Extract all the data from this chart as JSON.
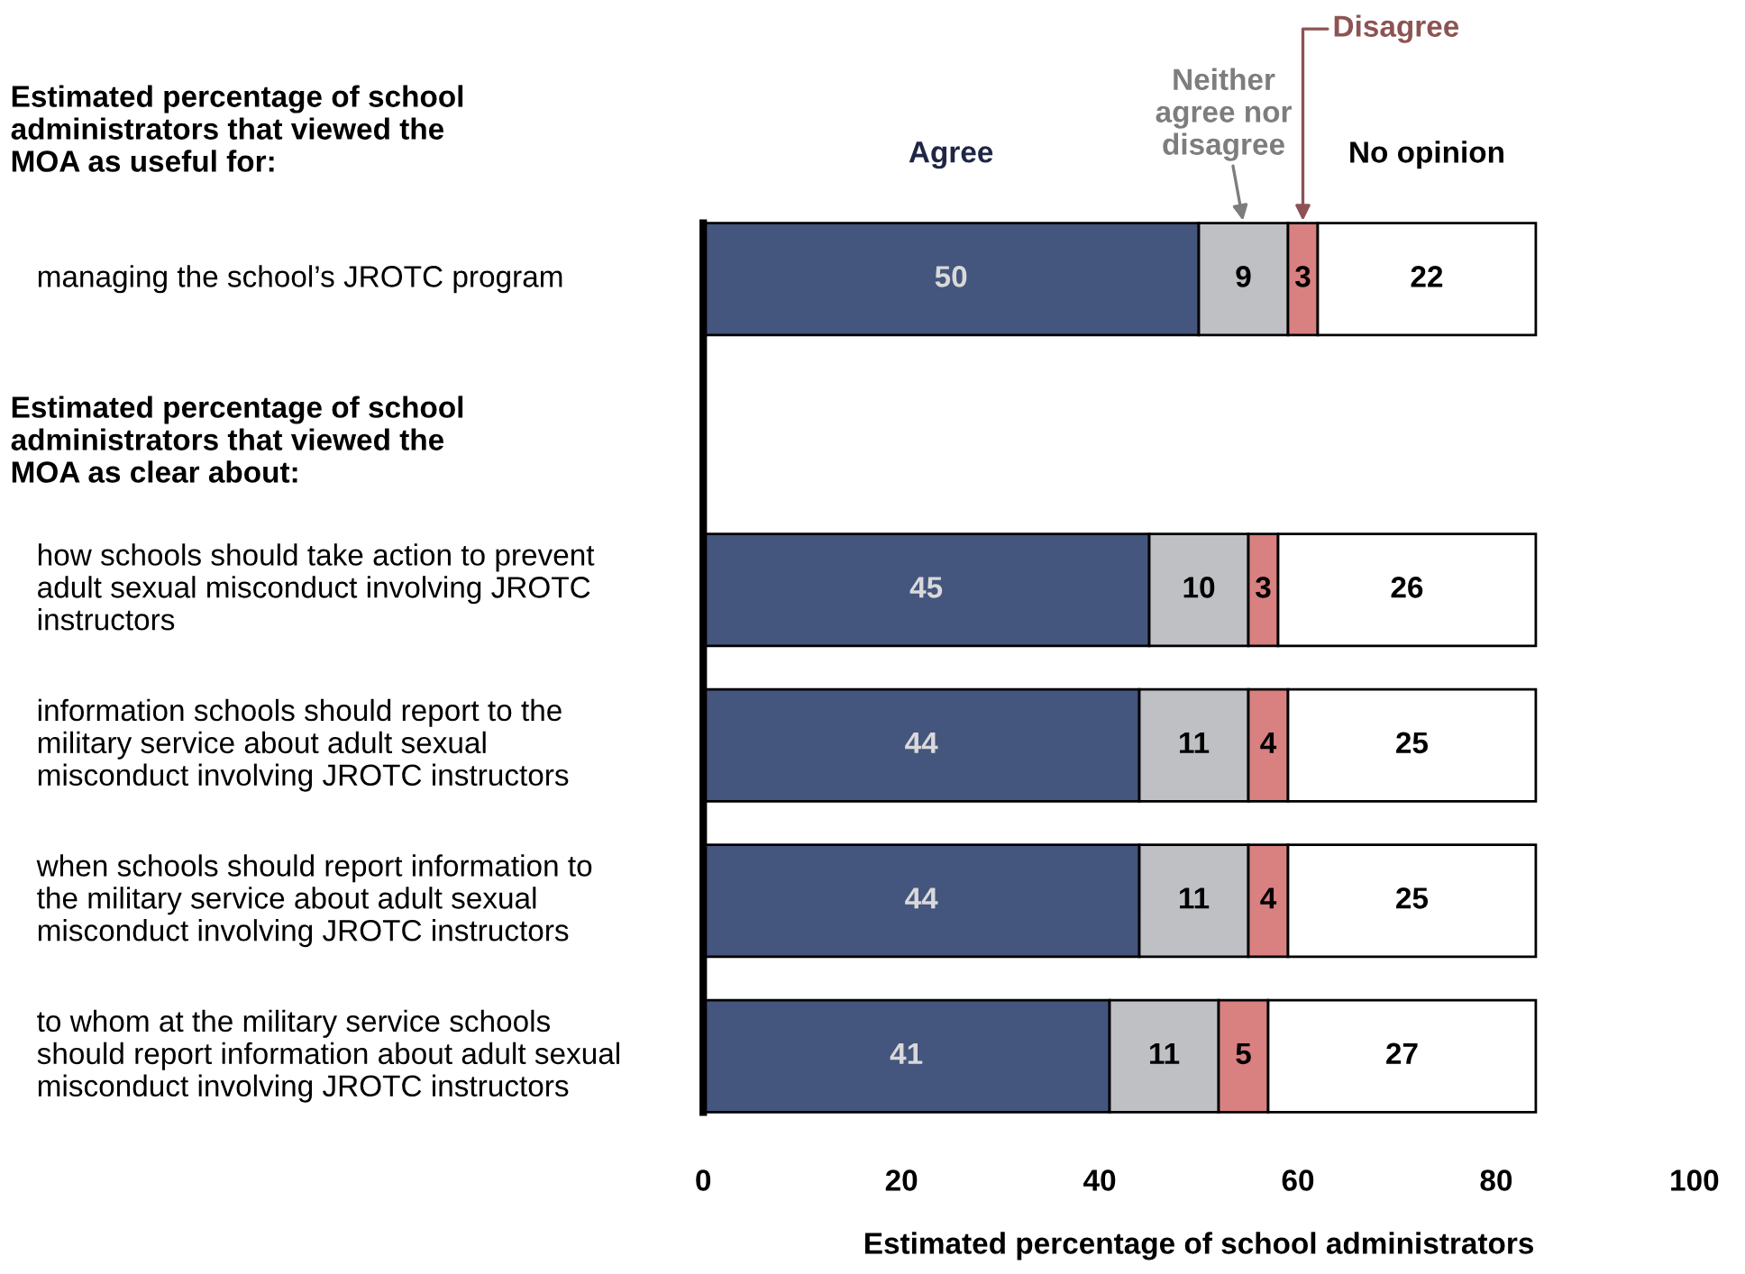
{
  "chart_data": {
    "type": "bar",
    "orientation": "horizontal",
    "stacked": true,
    "data_labels": true,
    "legend": false,
    "grid": false,
    "categories": [
      "managing the school’s JROTC program",
      null,
      "how schools should take action to prevent\nadult sexual misconduct involving JROTC\ninstructors",
      "information schools should report to the\nmilitary service about adult sexual\nmisconduct involving JROTC instructors",
      "when schools should report information to\nthe military service about adult sexual\nmisconduct involving JROTC instructors",
      "to whom at the military service schools\nshould report information about adult sexual\nmisconduct involving JROTC instructors"
    ],
    "series": [
      {
        "name": "Agree",
        "color": "#44557e",
        "values": [
          50,
          null,
          45,
          44,
          44,
          41
        ]
      },
      {
        "name": "Neither\nagree nor\ndisagree",
        "color": "#bfc0c4",
        "values": [
          9,
          null,
          10,
          11,
          11,
          11
        ]
      },
      {
        "name": "Disagree",
        "color": "#d98080",
        "values": [
          3,
          null,
          3,
          4,
          4,
          5
        ]
      },
      {
        "name": "No opinion",
        "color": "#ffffff",
        "values": [
          22,
          null,
          26,
          25,
          25,
          27
        ]
      }
    ],
    "xlim": [
      0,
      100
    ],
    "xticks": [
      0,
      20,
      40,
      60,
      80,
      100
    ],
    "xlabel": "Estimated percentage of school administrators",
    "annotations": [
      "Estimated percentage of school\nadministrators that viewed the\nMOA as useful for:",
      "Estimated percentage of school\nadministrators that viewed the\nMOA as clear about:"
    ]
  }
}
